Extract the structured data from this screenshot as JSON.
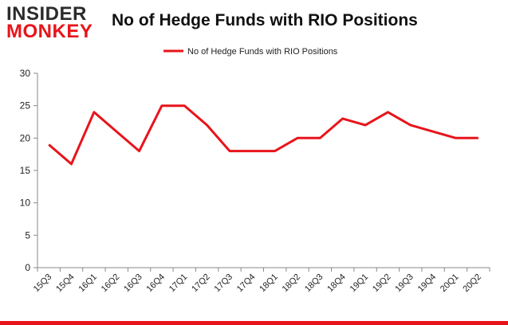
{
  "logo": {
    "line1": "INSIDER",
    "line2": "MONKEY"
  },
  "chart_data": {
    "type": "line",
    "title": "No of Hedge Funds with RIO Positions",
    "categories": [
      "15Q3",
      "15Q4",
      "16Q1",
      "16Q2",
      "16Q3",
      "16Q4",
      "17Q1",
      "17Q2",
      "17Q3",
      "17Q4",
      "18Q1",
      "18Q2",
      "18Q3",
      "18Q4",
      "19Q1",
      "19Q2",
      "19Q3",
      "19Q4",
      "20Q1",
      "20Q2"
    ],
    "series": [
      {
        "name": "No of Hedge Funds with RIO Positions",
        "values": [
          19,
          16,
          24,
          21,
          18,
          25,
          25,
          22,
          18,
          18,
          18,
          20,
          20,
          23,
          22,
          24,
          22,
          21,
          20,
          20
        ],
        "color": "#e8141b"
      }
    ],
    "yticks": [
      0,
      5,
      10,
      15,
      20,
      25,
      30
    ],
    "ylim": [
      0,
      30
    ],
    "xlabel": "",
    "ylabel": "",
    "grid": false,
    "legend_position": "top-center"
  }
}
